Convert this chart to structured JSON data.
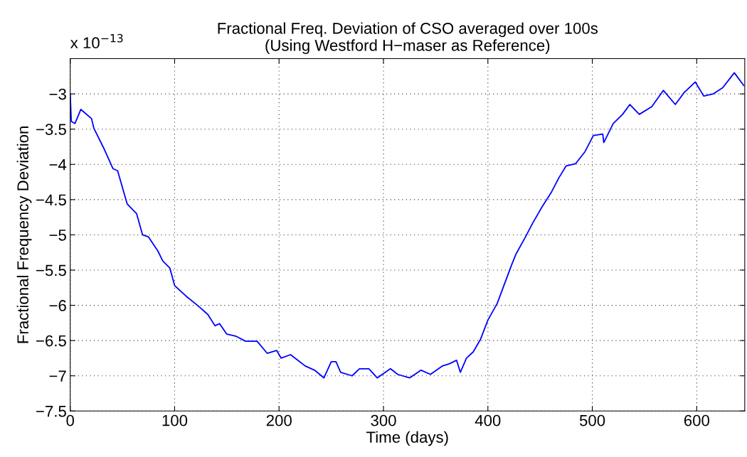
{
  "chart_data": {
    "type": "line",
    "title": "Fractional Freq. Deviation of CSO averaged over 100s\n(Using Westford H−maser as Reference)",
    "xlabel": "Time (days)",
    "ylabel": "Fractional Frequency Deviation",
    "annotations": [
      "x 10$^{−13}$"
    ],
    "xlim": [
      0,
      646
    ],
    "xticks": [
      0,
      100,
      200,
      300,
      400,
      500,
      600
    ],
    "ylim": [
      -7.5,
      -2.5
    ],
    "yticks": [
      -7.5,
      -7,
      -6.5,
      -6,
      -5.5,
      -5,
      -4.5,
      -4,
      -3.5,
      -3
    ],
    "grid": true,
    "marker": "none",
    "line_style": "solid",
    "series": [
      {
        "color": "#0000ff",
        "x": [
          0,
          1,
          4.5,
          10.2,
          20.4,
          22.7,
          31.8,
          40.9,
          45.4,
          54.5,
          63.6,
          69.3,
          75,
          84,
          88.6,
          95.4,
          100,
          111,
          122.7,
          131.8,
          138.6,
          143,
          150,
          159,
          168,
          179,
          188.6,
          197.7,
          202,
          211,
          225,
          234,
          243,
          250,
          254.5,
          259,
          270,
          277,
          286,
          294,
          306.7,
          313.6,
          325,
          336,
          345,
          356.6,
          363,
          370,
          373.6,
          379.5,
          386,
          393,
          400,
          409,
          415.8,
          422.6,
          427,
          436,
          443,
          452,
          461,
          468,
          475,
          484,
          493,
          501,
          510,
          511,
          520,
          529,
          536,
          545,
          557,
          568,
          579.5,
          588,
          598.6,
          606.7,
          615.7,
          625,
          636,
          645
        ],
        "values": [
          -3.0,
          -3.39,
          -3.42,
          -3.22,
          -3.35,
          -3.49,
          -3.76,
          -4.06,
          -4.09,
          -4.56,
          -4.7,
          -5.0,
          -5.03,
          -5.23,
          -5.37,
          -5.47,
          -5.72,
          -5.87,
          -6.01,
          -6.13,
          -6.29,
          -6.26,
          -6.41,
          -6.44,
          -6.51,
          -6.51,
          -6.68,
          -6.64,
          -6.75,
          -6.7,
          -6.86,
          -6.92,
          -7.03,
          -6.8,
          -6.8,
          -6.95,
          -7.0,
          -6.9,
          -6.9,
          -7.03,
          -6.9,
          -6.98,
          -7.03,
          -6.92,
          -6.98,
          -6.86,
          -6.83,
          -6.78,
          -6.95,
          -6.75,
          -6.66,
          -6.48,
          -6.21,
          -5.97,
          -5.7,
          -5.43,
          -5.27,
          -5.03,
          -4.83,
          -4.6,
          -4.39,
          -4.19,
          -4.02,
          -3.99,
          -3.82,
          -3.59,
          -3.57,
          -3.69,
          -3.42,
          -3.29,
          -3.15,
          -3.29,
          -3.18,
          -2.95,
          -3.15,
          -2.98,
          -2.83,
          -3.03,
          -3.0,
          -2.91,
          -2.7,
          -2.88
        ]
      }
    ]
  }
}
